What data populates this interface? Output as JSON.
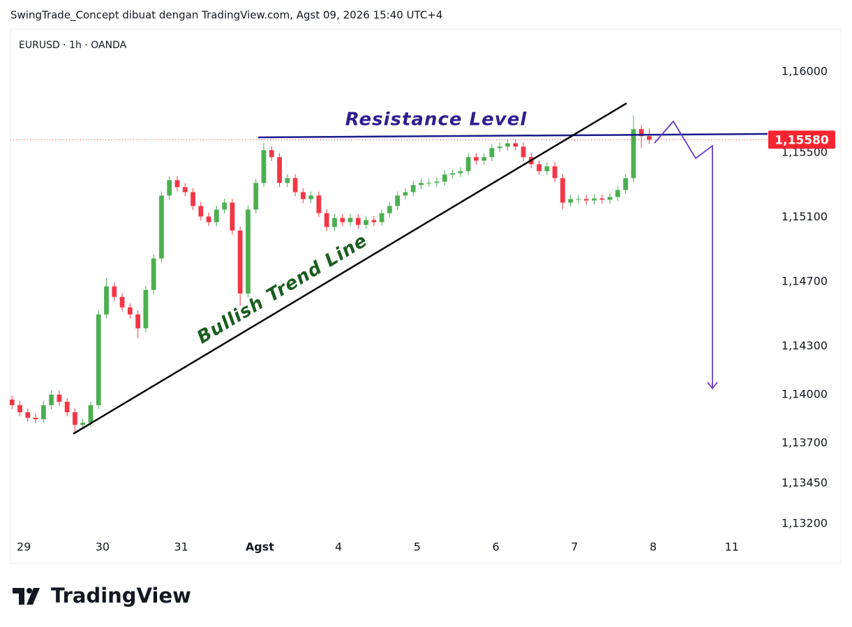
{
  "header": {
    "attribution": "SwingTrade_Concept dibuat dengan TradingView.com, Agst 09, 2026 15:40 UTC+4"
  },
  "chart_data": {
    "type": "candlestick",
    "title": "EURUSD · 1h · OANDA",
    "x": [
      -0.15,
      -0.05,
      0.05,
      0.15,
      0.25,
      0.35,
      0.45,
      0.55,
      0.65,
      0.75,
      0.85,
      0.95,
      1.05,
      1.15,
      1.25,
      1.35,
      1.45,
      1.55,
      1.65,
      1.75,
      1.85,
      1.95,
      2.05,
      2.15,
      2.25,
      2.35,
      2.45,
      2.55,
      2.65,
      2.75,
      2.85,
      2.95,
      3.05,
      3.15,
      3.25,
      3.35,
      3.45,
      3.55,
      3.65,
      3.75,
      3.85,
      3.95,
      4.05,
      4.15,
      4.25,
      4.35,
      4.45,
      4.55,
      4.65,
      4.75,
      4.85,
      4.95,
      5.05,
      5.15,
      5.25,
      5.35,
      5.45,
      5.55,
      5.65,
      5.75,
      5.85,
      5.95,
      6.05,
      6.15,
      6.25,
      6.35,
      6.45,
      6.55,
      6.65,
      6.75,
      6.85,
      6.95,
      7.05,
      7.15,
      7.25,
      7.35,
      7.45,
      7.55,
      7.65,
      7.75,
      7.85,
      7.95
    ],
    "open": [
      1.1397,
      1.13935,
      1.13891,
      1.13857,
      1.13848,
      1.13935,
      1.14,
      1.13956,
      1.13891,
      1.13813,
      1.13826,
      1.13935,
      1.14497,
      1.14671,
      1.14606,
      1.14541,
      1.14497,
      1.14411,
      1.14649,
      1.14844,
      1.15234,
      1.15329,
      1.15286,
      1.15255,
      1.15169,
      1.15104,
      1.15069,
      1.15147,
      1.1519,
      1.15017,
      1.14627,
      1.15147,
      1.15312,
      1.15515,
      1.15472,
      1.15312,
      1.15342,
      1.15255,
      1.15212,
      1.15234,
      1.15125,
      1.15039,
      1.15095,
      1.15069,
      1.15095,
      1.15052,
      1.15082,
      1.15069,
      1.15125,
      1.15169,
      1.15234,
      1.15255,
      1.15299,
      1.15312,
      1.15312,
      1.1532,
      1.15364,
      1.15372,
      1.15385,
      1.15472,
      1.1545,
      1.15472,
      1.15528,
      1.15537,
      1.15558,
      1.15537,
      1.15472,
      1.15428,
      1.15385,
      1.15415,
      1.15342,
      1.1519,
      1.15212,
      1.15212,
      1.15203,
      1.15216,
      1.15208,
      1.15225,
      1.15268,
      1.15342,
      1.15645,
      1.15602
    ],
    "high": [
      1.13995,
      1.1396,
      1.13916,
      1.13882,
      1.1396,
      1.14025,
      1.14025,
      1.13981,
      1.13916,
      1.13851,
      1.1396,
      1.14522,
      1.1472,
      1.14696,
      1.14631,
      1.14566,
      1.14522,
      1.14674,
      1.14869,
      1.15259,
      1.15354,
      1.15354,
      1.15311,
      1.1528,
      1.15194,
      1.15129,
      1.15172,
      1.15215,
      1.15215,
      1.15042,
      1.15172,
      1.15337,
      1.1556,
      1.1554,
      1.15497,
      1.15367,
      1.15367,
      1.1528,
      1.15259,
      1.15259,
      1.1515,
      1.1512,
      1.1512,
      1.1512,
      1.1512,
      1.15107,
      1.15107,
      1.1515,
      1.15194,
      1.15259,
      1.1528,
      1.15324,
      1.15337,
      1.15337,
      1.15345,
      1.15389,
      1.15397,
      1.1541,
      1.15497,
      1.15497,
      1.15497,
      1.15553,
      1.15562,
      1.15583,
      1.15583,
      1.15562,
      1.15497,
      1.15453,
      1.1544,
      1.1544,
      1.15367,
      1.15237,
      1.15237,
      1.15237,
      1.15241,
      1.15241,
      1.1525,
      1.15293,
      1.15367,
      1.1573,
      1.1567,
      1.1565
    ],
    "low": [
      1.1391,
      1.13866,
      1.13832,
      1.13823,
      1.13823,
      1.1391,
      1.13931,
      1.13866,
      1.1377,
      1.13788,
      1.13801,
      1.1391,
      1.14472,
      1.14581,
      1.14516,
      1.14472,
      1.1435,
      1.14386,
      1.14624,
      1.14819,
      1.15209,
      1.15261,
      1.1523,
      1.15144,
      1.15079,
      1.15044,
      1.15044,
      1.15122,
      1.14992,
      1.1455,
      1.14602,
      1.15122,
      1.15287,
      1.15447,
      1.15287,
      1.15287,
      1.1523,
      1.15187,
      1.15187,
      1.151,
      1.15014,
      1.15014,
      1.15044,
      1.15044,
      1.15027,
      1.15027,
      1.15044,
      1.15044,
      1.151,
      1.15144,
      1.15209,
      1.1523,
      1.15274,
      1.15287,
      1.15287,
      1.15295,
      1.15339,
      1.15347,
      1.1536,
      1.15425,
      1.15425,
      1.15447,
      1.15503,
      1.15512,
      1.15512,
      1.15447,
      1.15403,
      1.1536,
      1.1536,
      1.15317,
      1.1515,
      1.15165,
      1.15187,
      1.15178,
      1.15178,
      1.15183,
      1.15183,
      1.152,
      1.15243,
      1.15317,
      1.1553,
      1.15555
    ],
    "close": [
      1.13935,
      1.13891,
      1.13857,
      1.13848,
      1.13935,
      1.14,
      1.13956,
      1.13891,
      1.13813,
      1.13826,
      1.13935,
      1.14497,
      1.14671,
      1.14606,
      1.14541,
      1.14497,
      1.14411,
      1.14649,
      1.14844,
      1.15234,
      1.15329,
      1.15286,
      1.15255,
      1.15169,
      1.15104,
      1.15069,
      1.15147,
      1.1519,
      1.15017,
      1.14627,
      1.15147,
      1.15312,
      1.15515,
      1.15472,
      1.15312,
      1.15342,
      1.15255,
      1.15212,
      1.15234,
      1.15125,
      1.15039,
      1.15095,
      1.15069,
      1.15095,
      1.15052,
      1.15082,
      1.15069,
      1.15125,
      1.15169,
      1.15234,
      1.15255,
      1.15299,
      1.15312,
      1.15312,
      1.1532,
      1.15364,
      1.15372,
      1.15385,
      1.15472,
      1.1545,
      1.15472,
      1.15528,
      1.15537,
      1.15558,
      1.15537,
      1.15472,
      1.15428,
      1.15385,
      1.15415,
      1.15342,
      1.1519,
      1.15212,
      1.15212,
      1.15203,
      1.15216,
      1.15208,
      1.15225,
      1.15268,
      1.15342,
      1.15645,
      1.15602,
      1.1558
    ],
    "up_color": "#4caf50",
    "down_color": "#f23645",
    "xlim": [
      -0.17,
      9.41
    ],
    "xticks": [
      {
        "value": 0,
        "label": "29"
      },
      {
        "value": 1,
        "label": "30"
      },
      {
        "value": 2,
        "label": "31"
      },
      {
        "value": 3,
        "label": "Agst"
      },
      {
        "value": 4,
        "label": "4"
      },
      {
        "value": 5,
        "label": "5"
      },
      {
        "value": 6,
        "label": "6"
      },
      {
        "value": 7,
        "label": "7"
      },
      {
        "value": 8,
        "label": "8"
      },
      {
        "value": 9,
        "label": "11"
      }
    ],
    "ylim": [
      1.13118,
      1.16264
    ],
    "yticks": [
      {
        "value": 1.16,
        "label": "1,16000"
      },
      {
        "value": 1.155,
        "label": "1,15500"
      },
      {
        "value": 1.151,
        "label": "1,15100"
      },
      {
        "value": 1.147,
        "label": "1,14700"
      },
      {
        "value": 1.143,
        "label": "1,14300"
      },
      {
        "value": 1.14,
        "label": "1,14000"
      },
      {
        "value": 1.137,
        "label": "1,13700"
      },
      {
        "value": 1.1345,
        "label": "1,13450"
      },
      {
        "value": 1.132,
        "label": "1,13200"
      }
    ],
    "last_price": {
      "value": 1.1558,
      "label": "1,15580"
    },
    "last_price_color": "#f7252f",
    "annotations": [
      "Resistance Level",
      "Bullish Trend Line"
    ]
  },
  "footer": {
    "logo": "TradingView"
  }
}
